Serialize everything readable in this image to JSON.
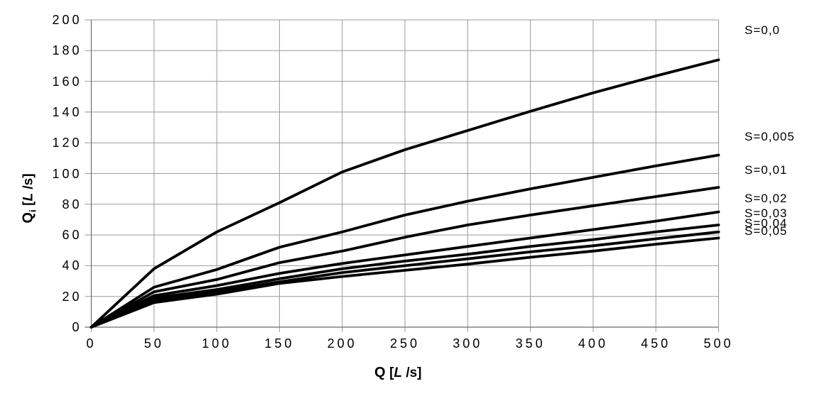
{
  "chart_data": {
    "type": "line",
    "title": "",
    "xlabel": {
      "symbol": "Q",
      "bracket": "[",
      "unit_italic": "L",
      "unit_rest": " /s]"
    },
    "ylabel": {
      "symbol": "Q",
      "subscript": "i",
      "bracket": "[",
      "unit_italic": "L",
      "unit_rest": " /s]"
    },
    "xlim": [
      0,
      500
    ],
    "ylim": [
      0,
      200
    ],
    "x_ticks": [
      0,
      50,
      100,
      150,
      200,
      250,
      300,
      350,
      400,
      450,
      500
    ],
    "y_ticks": [
      0,
      20,
      40,
      60,
      80,
      100,
      120,
      140,
      160,
      180,
      200
    ],
    "grid": "both",
    "legend_position": "right-outside",
    "x": [
      0,
      50,
      100,
      150,
      200,
      250,
      300,
      350,
      400,
      450,
      500
    ],
    "series": [
      {
        "name": "S=0,0",
        "values": [
          0,
          38,
          62,
          81,
          101,
          115.5,
          128,
          140.5,
          152.5,
          163.5,
          174
        ]
      },
      {
        "name": "S=0,005",
        "values": [
          0,
          26,
          37.5,
          52,
          62,
          73,
          82,
          90,
          97.5,
          105,
          112
        ]
      },
      {
        "name": "S=0,01",
        "values": [
          0,
          23,
          31,
          42,
          49.5,
          58.5,
          66.5,
          73,
          79,
          85,
          91
        ]
      },
      {
        "name": "S=0,02",
        "values": [
          0,
          20.5,
          27,
          35,
          41.5,
          47,
          52.5,
          58,
          63.5,
          69,
          75
        ]
      },
      {
        "name": "S=0,03",
        "values": [
          0,
          19,
          24.5,
          31.5,
          38,
          43,
          47.5,
          52.5,
          57,
          62,
          66.5
        ]
      },
      {
        "name": "S=0,04",
        "values": [
          0,
          17.5,
          23,
          29.5,
          35.5,
          40,
          44.5,
          49,
          53,
          57.5,
          62
        ]
      },
      {
        "name": "S=0,05",
        "values": [
          0,
          16,
          21.5,
          28.5,
          33,
          37,
          41,
          45.5,
          49.5,
          54,
          58
        ]
      }
    ],
    "colors": {
      "line": "#000000",
      "grid": "#999999",
      "axis": "#6e6e6e",
      "text": "#000000",
      "background": "#ffffff"
    }
  }
}
